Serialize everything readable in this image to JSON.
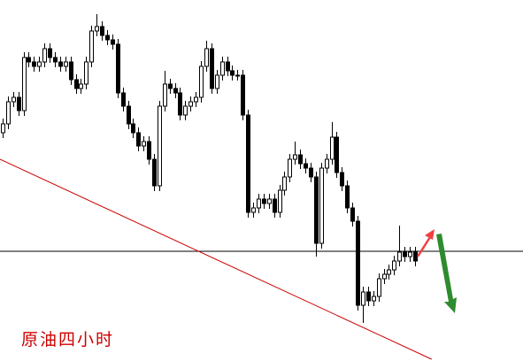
{
  "chart_data": {
    "type": "candlestick",
    "title": "原油四小时",
    "xlim": [
      -0.5,
      99.7
    ],
    "ylim": [
      0,
      408
    ],
    "up_color": "#ffffff",
    "down_color": "#000000",
    "hline": 124,
    "hline_color": "#000000",
    "trendline": {
      "x": [
        -0.5,
        82.2
      ],
      "y": [
        228,
        2
      ],
      "color": "#cc0000"
    },
    "ohlc": [
      [
        258,
        274,
        252,
        268
      ],
      [
        268,
        299,
        262,
        293
      ],
      [
        293,
        304,
        287,
        298
      ],
      [
        298,
        304,
        277,
        283
      ],
      [
        283,
        349,
        277,
        343
      ],
      [
        343,
        349,
        332,
        338
      ],
      [
        338,
        344,
        327,
        333
      ],
      [
        333,
        344,
        327,
        338
      ],
      [
        338,
        359,
        332,
        353
      ],
      [
        353,
        359,
        337,
        343
      ],
      [
        343,
        349,
        332,
        338
      ],
      [
        338,
        344,
        327,
        333
      ],
      [
        333,
        344,
        327,
        338
      ],
      [
        338,
        344,
        312,
        318
      ],
      [
        318,
        324,
        302,
        308
      ],
      [
        308,
        319,
        302,
        313
      ],
      [
        313,
        344,
        307,
        338
      ],
      [
        338,
        379,
        332,
        373
      ],
      [
        373,
        392,
        367,
        378
      ],
      [
        378,
        384,
        362,
        368
      ],
      [
        368,
        374,
        357,
        363
      ],
      [
        363,
        369,
        352,
        358
      ],
      [
        358,
        364,
        297,
        303
      ],
      [
        303,
        309,
        282,
        288
      ],
      [
        288,
        294,
        262,
        268
      ],
      [
        268,
        274,
        252,
        258
      ],
      [
        258,
        264,
        237,
        243
      ],
      [
        243,
        254,
        237,
        248
      ],
      [
        248,
        254,
        222,
        228
      ],
      [
        228,
        234,
        192,
        198
      ],
      [
        198,
        294,
        192,
        288
      ],
      [
        288,
        328,
        282,
        313
      ],
      [
        313,
        319,
        302,
        308
      ],
      [
        308,
        314,
        297,
        303
      ],
      [
        303,
        309,
        272,
        278
      ],
      [
        278,
        294,
        272,
        288
      ],
      [
        288,
        299,
        282,
        293
      ],
      [
        293,
        304,
        287,
        298
      ],
      [
        298,
        339,
        292,
        333
      ],
      [
        333,
        362,
        327,
        353
      ],
      [
        353,
        359,
        302,
        308
      ],
      [
        308,
        329,
        302,
        323
      ],
      [
        323,
        344,
        317,
        338
      ],
      [
        338,
        344,
        322,
        328
      ],
      [
        328,
        334,
        317,
        323
      ],
      [
        323,
        329,
        317,
        323
      ],
      [
        323,
        329,
        272,
        278
      ],
      [
        278,
        284,
        162,
        168
      ],
      [
        168,
        179,
        162,
        173
      ],
      [
        173,
        189,
        167,
        183
      ],
      [
        183,
        189,
        172,
        178
      ],
      [
        178,
        189,
        172,
        183
      ],
      [
        183,
        189,
        162,
        168
      ],
      [
        168,
        199,
        162,
        193
      ],
      [
        193,
        214,
        187,
        208
      ],
      [
        208,
        234,
        202,
        228
      ],
      [
        228,
        248,
        222,
        233
      ],
      [
        233,
        239,
        217,
        223
      ],
      [
        223,
        229,
        212,
        218
      ],
      [
        218,
        224,
        202,
        208
      ],
      [
        208,
        214,
        118,
        133
      ],
      [
        133,
        224,
        127,
        218
      ],
      [
        218,
        234,
        212,
        228
      ],
      [
        228,
        270,
        222,
        253
      ],
      [
        253,
        259,
        207,
        213
      ],
      [
        213,
        219,
        192,
        198
      ],
      [
        198,
        204,
        167,
        173
      ],
      [
        173,
        179,
        152,
        158
      ],
      [
        158,
        164,
        57,
        63
      ],
      [
        63,
        84,
        43,
        78
      ],
      [
        78,
        84,
        62,
        68
      ],
      [
        68,
        79,
        62,
        73
      ],
      [
        73,
        99,
        67,
        93
      ],
      [
        93,
        104,
        87,
        98
      ],
      [
        98,
        109,
        92,
        103
      ],
      [
        103,
        119,
        97,
        113
      ],
      [
        113,
        153,
        107,
        123
      ],
      [
        123,
        129,
        112,
        118
      ],
      [
        118,
        129,
        112,
        123
      ],
      [
        123,
        129,
        107,
        113
      ]
    ]
  }
}
